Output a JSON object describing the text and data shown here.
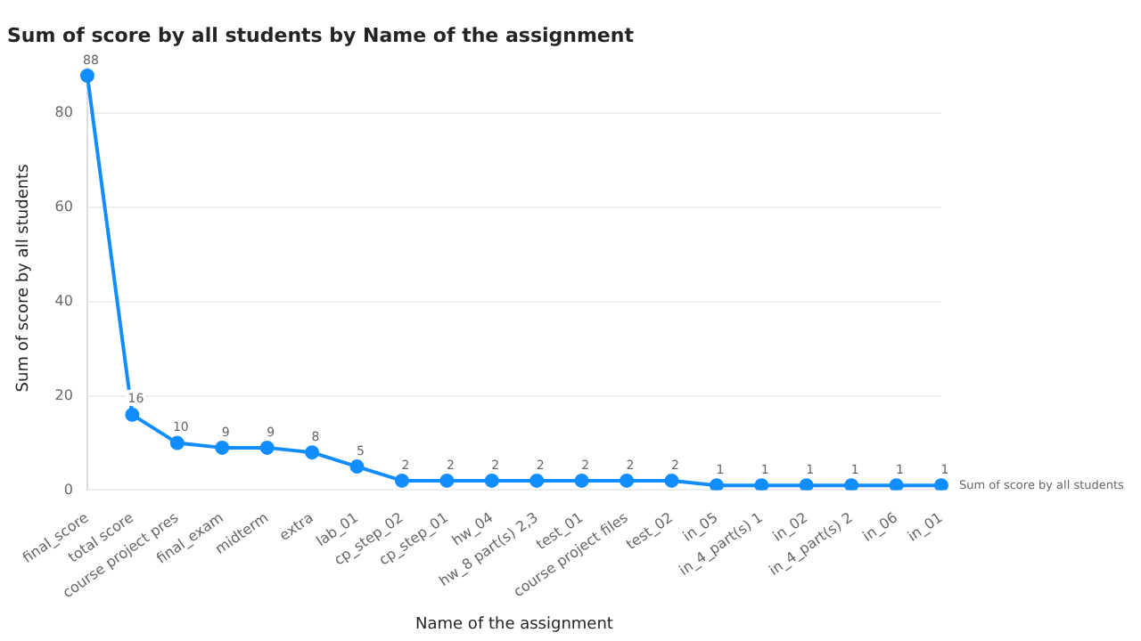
{
  "chart_data": {
    "type": "line",
    "title": "Sum of score by all students by Name of the assignment",
    "xlabel": "Name of the assignment",
    "ylabel": "Sum of score by all students",
    "categories": [
      "final_score",
      "total score",
      "course project pres",
      "final_exam",
      "midterm",
      "extra",
      "lab_01",
      "cp_step_02",
      "cp_step_01",
      "hw_04",
      "hw_8 part(s) 2,3",
      "test_01",
      "course project files",
      "test_02",
      "in_05",
      "in_4_part(s) 1",
      "in_02",
      "in_4_part(s) 2",
      "in_06",
      "in_01"
    ],
    "series": [
      {
        "name": "Sum of score by all students",
        "color": "#118dff",
        "values": [
          88,
          16,
          10,
          9,
          9,
          8,
          5,
          2,
          2,
          2,
          2,
          2,
          2,
          2,
          1,
          1,
          1,
          1,
          1,
          1
        ]
      }
    ],
    "ylim": [
      0,
      90
    ],
    "yticks": [
      0,
      20,
      40,
      60,
      80
    ],
    "grid": "y",
    "legend": false,
    "marker": "circle",
    "line_style": "solid",
    "data_labels": true
  }
}
